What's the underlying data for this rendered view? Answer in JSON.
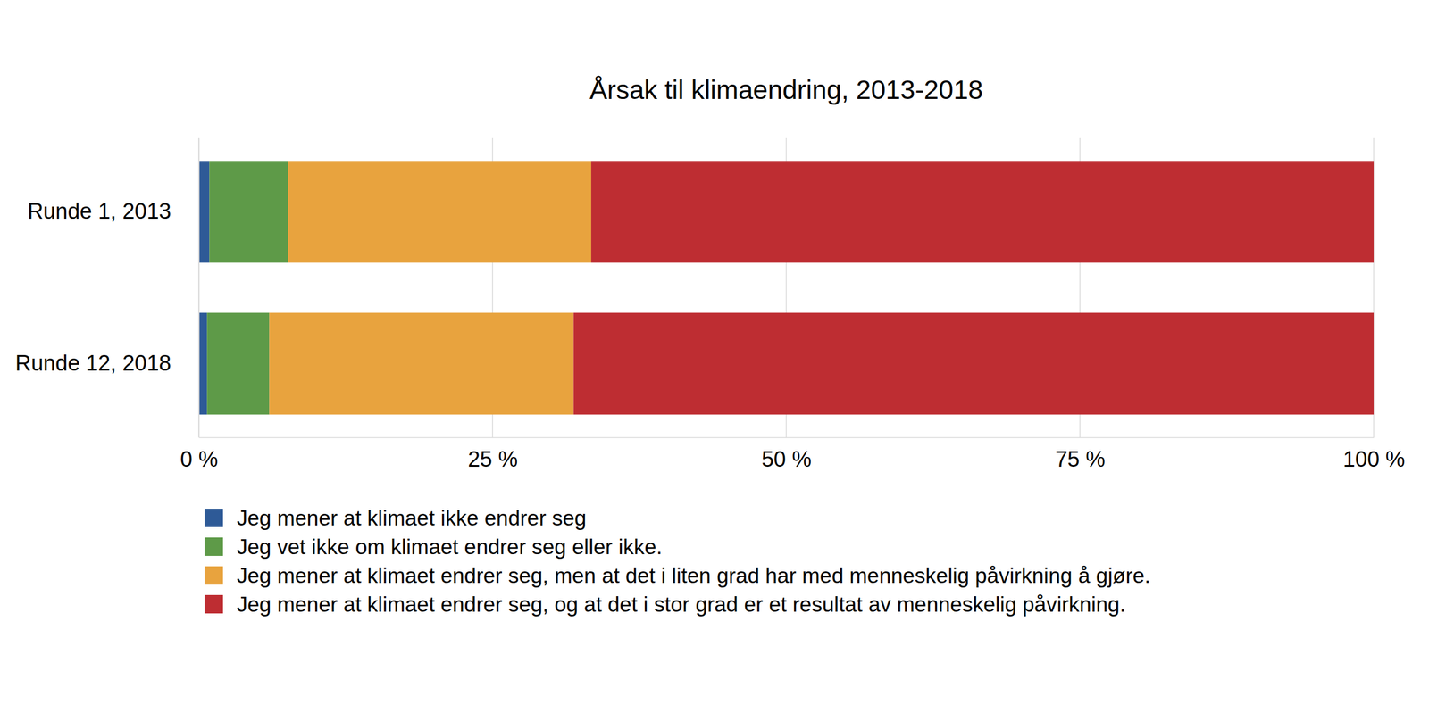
{
  "chart_data": {
    "type": "bar",
    "title": "Årsak til klimaendring, 2013-2018",
    "orientation": "horizontal",
    "stacked": true,
    "grid": true,
    "legend": "bottom",
    "categories": [
      "Runde 1, 2013",
      "Runde 12, 2018"
    ],
    "series": [
      {
        "name": "Jeg mener at klimaet ikke endrer seg",
        "color": "#2e5a97",
        "values": [
          0.9,
          0.7
        ]
      },
      {
        "name": "Jeg vet ikke om klimaet endrer seg eller ikke.",
        "color": "#5e9a48",
        "values": [
          6.7,
          5.3
        ]
      },
      {
        "name": "Jeg mener at klimaet endrer seg, men at det i liten grad har med menneskelig påvirkning å gjøre.",
        "color": "#e8a33e",
        "values": [
          25.8,
          25.9
        ]
      },
      {
        "name": "Jeg mener at klimaet endrer seg, og at det i stor grad er et resultat av menneskelig påvirkning.",
        "color": "#be2d32",
        "values": [
          66.6,
          68.1
        ]
      }
    ],
    "xlim": [
      0,
      100
    ],
    "xticks": [
      {
        "value": 0,
        "label": "0 %"
      },
      {
        "value": 25,
        "label": "25 %"
      },
      {
        "value": 50,
        "label": "50 %"
      },
      {
        "value": 75,
        "label": "75 %"
      },
      {
        "value": 100,
        "label": "100 %"
      }
    ]
  }
}
